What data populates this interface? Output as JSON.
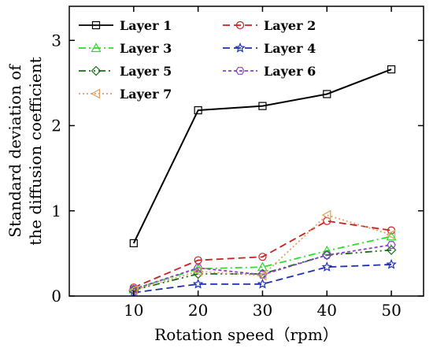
{
  "chart_data": {
    "type": "line",
    "x": [
      10,
      20,
      30,
      40,
      50
    ],
    "xlabel": "Rotation speed（rpm）",
    "ylabel_line1": "Standard deviation of",
    "ylabel_line2": "the diffusion coefficient",
    "xlim": [
      0,
      55
    ],
    "ylim": [
      0,
      3.4
    ],
    "xticks": [
      10,
      20,
      30,
      40,
      50
    ],
    "yticks": [
      0,
      1,
      2,
      3
    ],
    "grid": false,
    "legend_position": "top-left",
    "series": [
      {
        "name": "Layer 1",
        "values": [
          0.62,
          2.18,
          2.23,
          2.37,
          2.66
        ],
        "color": "#000000",
        "dash": "",
        "marker": "square"
      },
      {
        "name": "Layer 2",
        "values": [
          0.1,
          0.42,
          0.46,
          0.88,
          0.77
        ],
        "color": "#cc1f1f",
        "dash": "9,5",
        "marker": "circle"
      },
      {
        "name": "Layer 3",
        "values": [
          0.08,
          0.32,
          0.34,
          0.53,
          0.7
        ],
        "color": "#2bdc2b",
        "dash": "9,4,2,4",
        "marker": "triangle"
      },
      {
        "name": "Layer 4",
        "values": [
          0.04,
          0.14,
          0.14,
          0.34,
          0.37
        ],
        "color": "#1f2fb0",
        "dash": "9,5",
        "marker": "star"
      },
      {
        "name": "Layer 5",
        "values": [
          0.07,
          0.26,
          0.26,
          0.48,
          0.54
        ],
        "color": "#1a6b1a",
        "dash": "9,4,2,4,2,4",
        "marker": "diamond"
      },
      {
        "name": "Layer 6",
        "values": [
          0.08,
          0.33,
          0.25,
          0.48,
          0.6
        ],
        "color": "#8a3fc7",
        "dash": "4,3",
        "marker": "hexagon"
      },
      {
        "name": "Layer 7",
        "values": [
          0.07,
          0.29,
          0.24,
          0.95,
          0.72
        ],
        "color": "#e0a060",
        "dash": "2,3",
        "marker": "left-triangle"
      }
    ]
  }
}
